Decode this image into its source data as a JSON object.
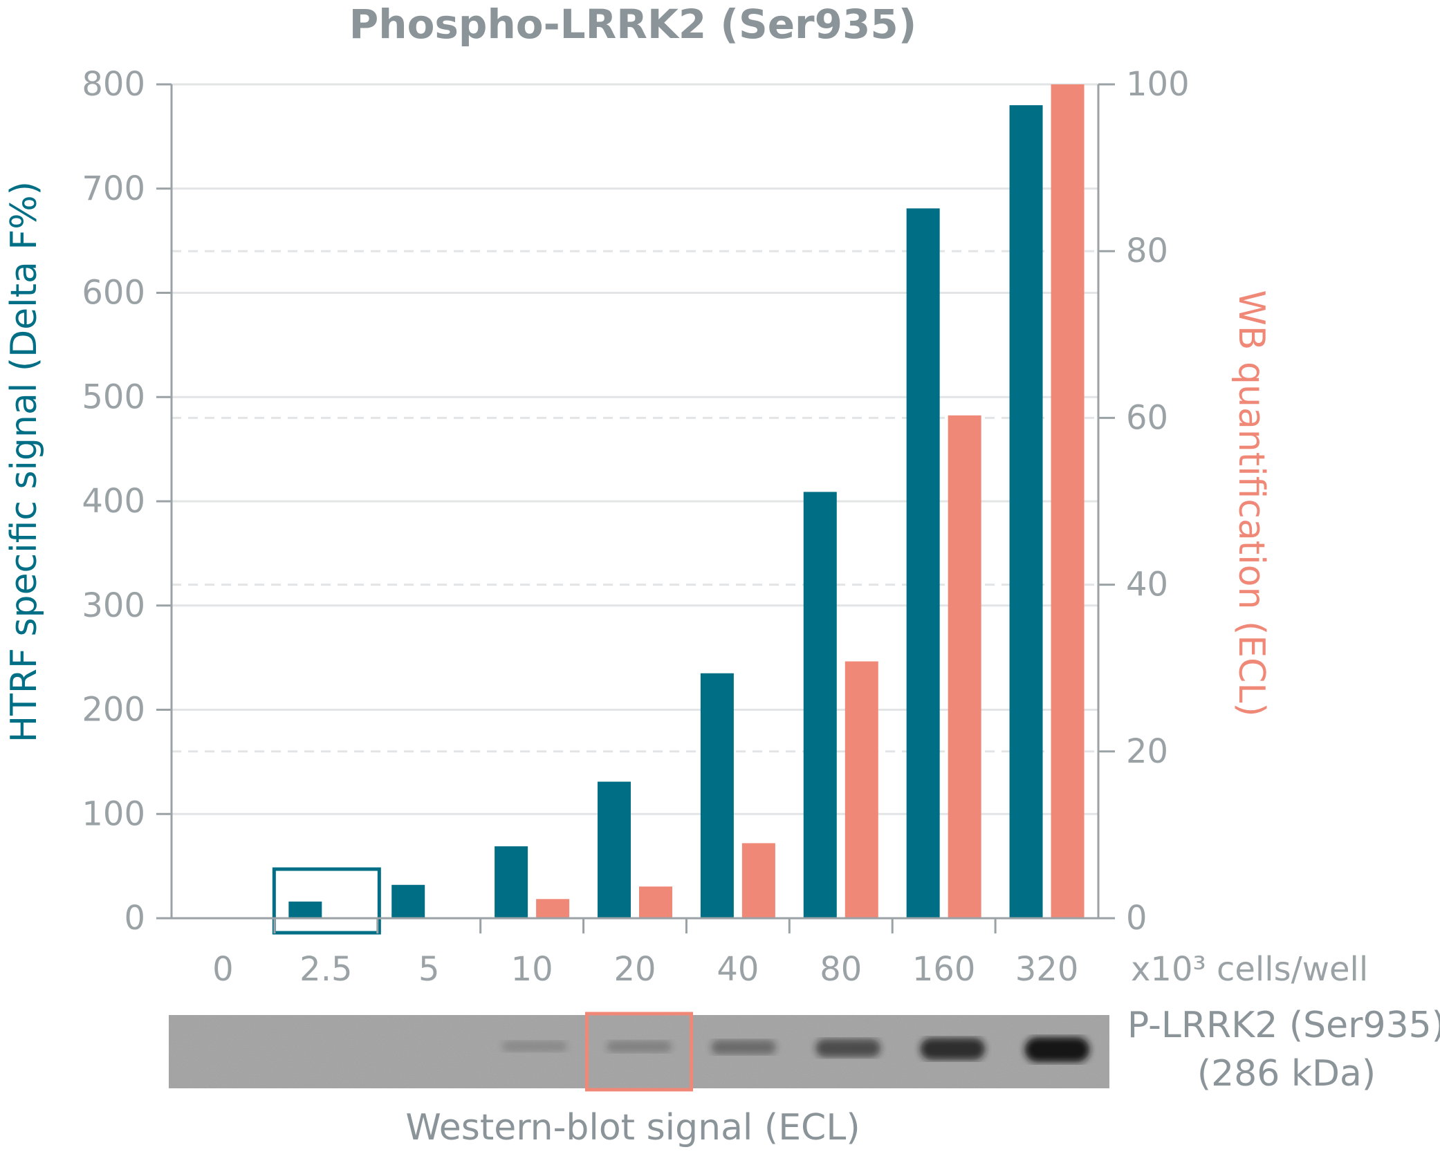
{
  "chart_data": {
    "type": "bar",
    "title": "Phospho-LRRK2 (Ser935)",
    "xlabel": "x10³ cells/well",
    "categories": [
      "0",
      "2.5",
      "5",
      "10",
      "20",
      "40",
      "80",
      "160",
      "320"
    ],
    "y_left": {
      "label": "HTRF specific signal (Delta F%)",
      "ylim": [
        0,
        800
      ],
      "ticks": [
        "0",
        "100",
        "200",
        "300",
        "400",
        "500",
        "600",
        "700",
        "800"
      ]
    },
    "y_right": {
      "label": "WB quantification (ECL)",
      "ylim": [
        0,
        100
      ],
      "ticks": [
        "0",
        "20",
        "40",
        "60",
        "80",
        "100"
      ]
    },
    "series": [
      {
        "axis": "left",
        "color": "#006e84",
        "values": [
          0,
          16,
          32,
          69,
          131,
          235,
          409,
          681,
          780
        ]
      },
      {
        "axis": "right",
        "color": "#f08878",
        "values": [
          0,
          0,
          0,
          2.3,
          3.8,
          9.0,
          30.8,
          60.3,
          100
        ]
      }
    ],
    "highlights": [
      {
        "category": "2.5",
        "color": "#006e84"
      },
      {
        "category": "20",
        "color": "#f08878"
      }
    ],
    "grid": true,
    "blot": {
      "label_line1": "P-LRRK2 (Ser935)",
      "label_line2": "(286 kDa)",
      "caption": "Western-blot signal (ECL)",
      "band_intensity": [
        0,
        0,
        0,
        0.05,
        0.12,
        0.3,
        0.55,
        0.8,
        1.0
      ]
    }
  }
}
